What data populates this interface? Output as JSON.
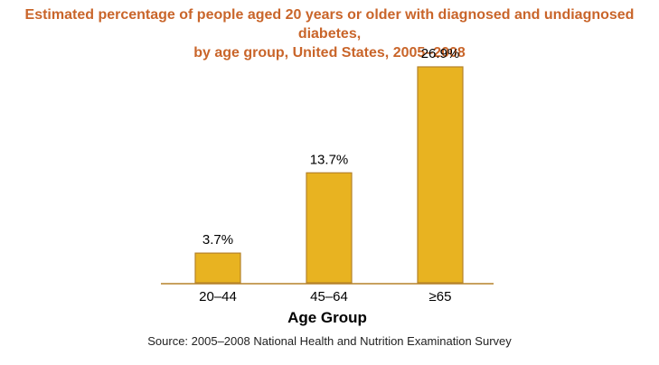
{
  "title_line1": "Estimated percentage of people aged 20 years or older with diagnosed and undiagnosed diabetes,",
  "title_line2": "by age group, United States, 2005–2008",
  "source": "Source: 2005–2008 National Health and Nutrition Examination Survey",
  "colors": {
    "title": "#c9652a",
    "bar_fill": "#e8b321",
    "bar_stroke": "#b5822a",
    "axis": "#b5822a"
  },
  "chart_data": {
    "type": "bar",
    "categories": [
      "20–44",
      "45–64",
      "≥65"
    ],
    "values": [
      3.7,
      13.7,
      26.9
    ],
    "data_labels": [
      "3.7%",
      "13.7%",
      "26.9%"
    ],
    "xlabel": "Age Group",
    "ylabel": "",
    "ylim": [
      0,
      30
    ],
    "grid": false
  }
}
